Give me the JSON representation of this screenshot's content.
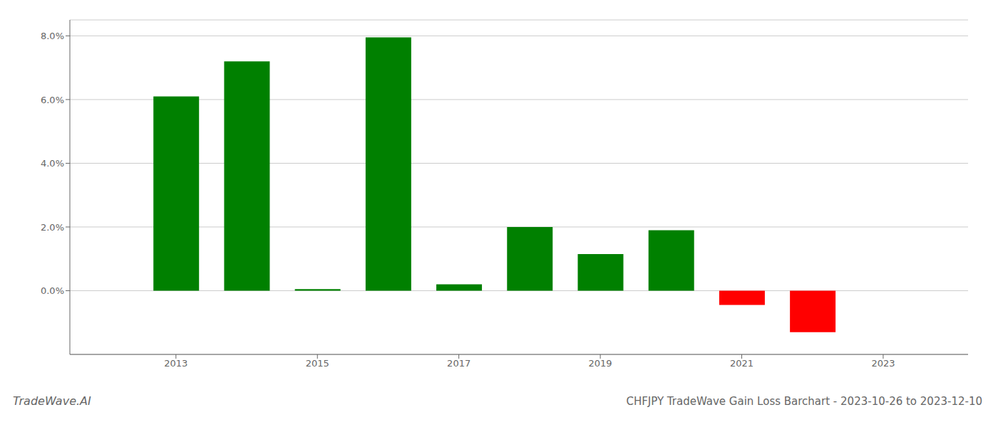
{
  "chart_data": {
    "type": "bar",
    "title": "CHFJPY TradeWave Gain Loss Barchart - 2023-10-26 to 2023-12-10",
    "annotations": [
      "TradeWave.AI"
    ],
    "x": [
      2013,
      2014,
      2015,
      2016,
      2017,
      2018,
      2019,
      2020,
      2021,
      2022
    ],
    "values": [
      0.061,
      0.072,
      0.0005,
      0.0795,
      0.002,
      0.02,
      0.0115,
      0.019,
      -0.0045,
      -0.013
    ],
    "colors": [
      "#008000",
      "#008000",
      "#008000",
      "#008000",
      "#008000",
      "#008000",
      "#008000",
      "#008000",
      "#ff0000",
      "#ff0000"
    ],
    "xlim": [
      2011.5,
      2024.2
    ],
    "xticks": [
      2013,
      2015,
      2017,
      2019,
      2021,
      2023
    ],
    "ylim": [
      -0.02,
      0.085
    ],
    "yticks": [
      {
        "value": 0.0,
        "label": "0.0%"
      },
      {
        "value": 0.02,
        "label": "2.0%"
      },
      {
        "value": 0.04,
        "label": "4.0%"
      },
      {
        "value": 0.06,
        "label": "6.0%"
      },
      {
        "value": 0.08,
        "label": "8.0%"
      }
    ],
    "grid": true
  }
}
